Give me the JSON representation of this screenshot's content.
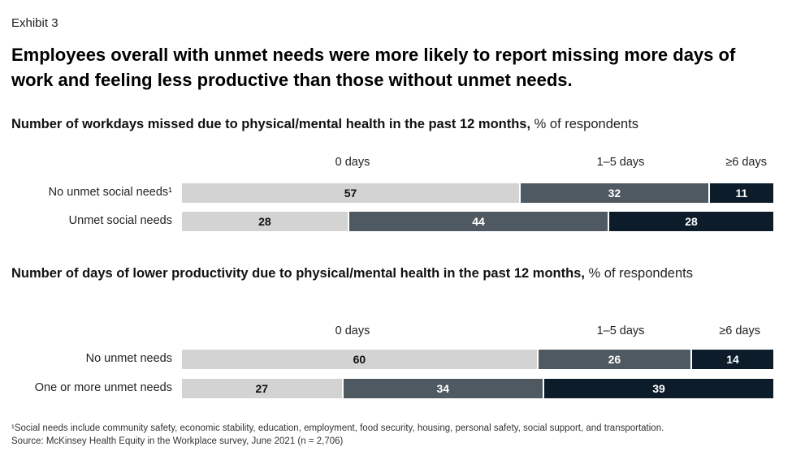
{
  "exhibit_label": "Exhibit 3",
  "headline": "Employees overall with unmet needs were more likely to report missing more days of work and feeling less productive than those without unmet needs.",
  "colors": {
    "zero_days": "#d3d3d3",
    "one_to_five_days": "#4f5961",
    "six_plus_days": "#0c1c2a"
  },
  "chart_data": [
    {
      "type": "bar",
      "orientation": "horizontal-stacked-100",
      "title": "Number of workdays missed due to physical/mental health in the past 12 months,",
      "unit": "% of respondents",
      "series_names": [
        "0 days",
        "1–5 days",
        "≥6 days"
      ],
      "rows": [
        {
          "label": "No unmet social needs¹",
          "values": [
            57,
            32,
            11
          ]
        },
        {
          "label": "Unmet social needs",
          "values": [
            28,
            44,
            28
          ]
        }
      ]
    },
    {
      "type": "bar",
      "orientation": "horizontal-stacked-100",
      "title": "Number of days of lower productivity due to physical/mental health in the past 12 months,",
      "unit": "% of respondents",
      "series_names": [
        "0 days",
        "1–5 days",
        "≥6 days"
      ],
      "rows": [
        {
          "label": "No unmet needs",
          "values": [
            60,
            26,
            14
          ]
        },
        {
          "label": "One or more unmet needs",
          "values": [
            27,
            34,
            39
          ]
        }
      ]
    }
  ],
  "footnote": {
    "line1": "¹Social needs include community safety, economic stability, education, employment, food security, housing, personal safety, social support, and transportation.",
    "line2": "Source: McKinsey Health Equity in the Workplace survey, June 2021 (n = 2,706)"
  }
}
